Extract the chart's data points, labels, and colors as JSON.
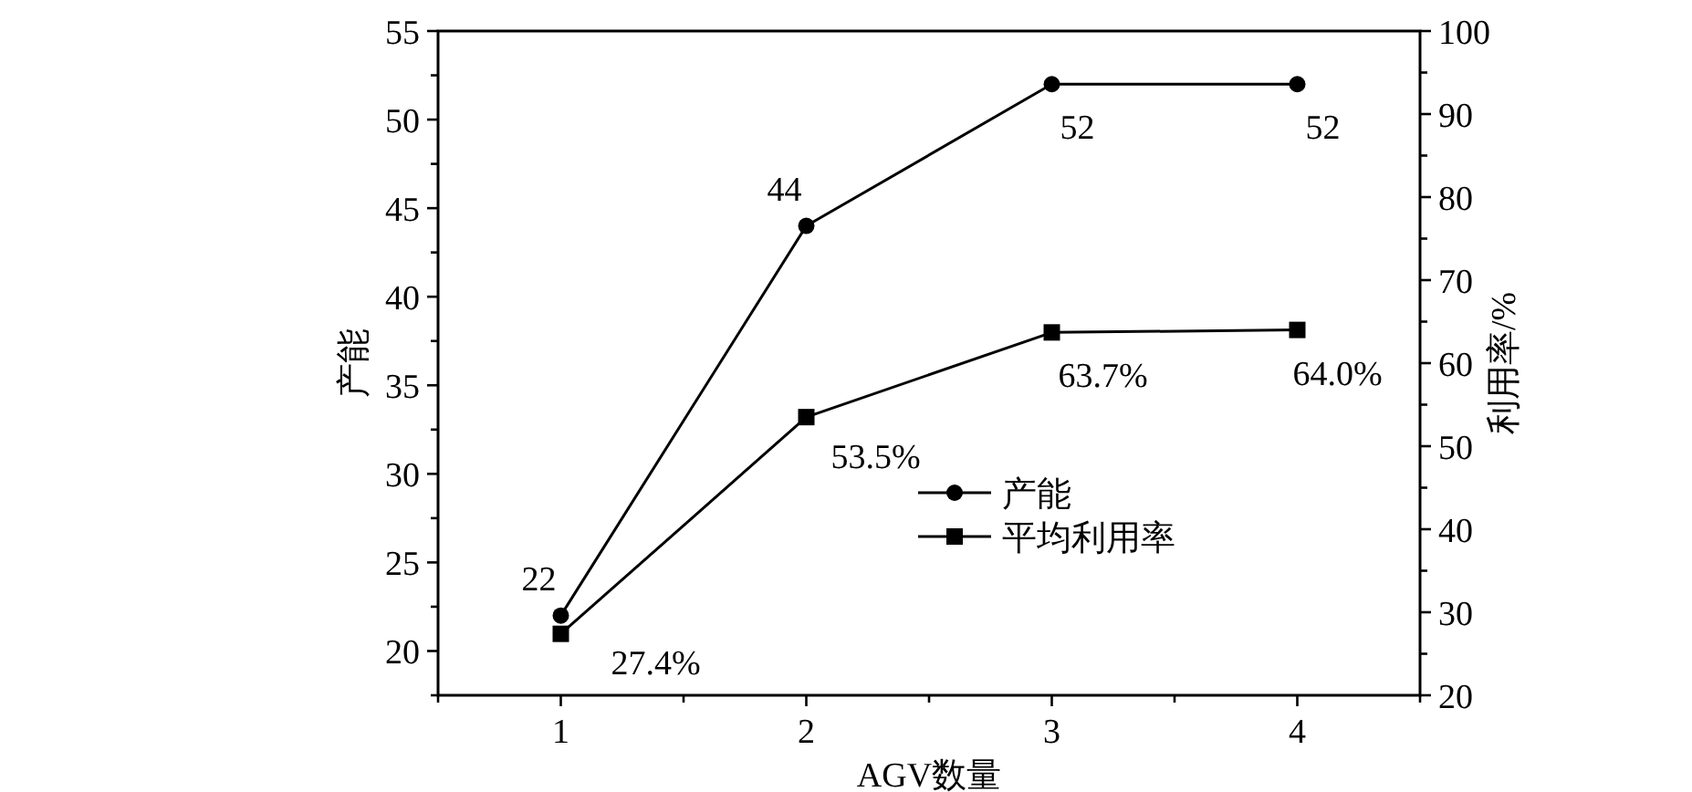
{
  "chart_data": {
    "type": "line",
    "xlabel": "AGV数量",
    "ylabel": "产能",
    "y2label": "利用率/%",
    "x": [
      1,
      2,
      3,
      4
    ],
    "xlim": [
      0.5,
      4.5
    ],
    "xticks": [
      {
        "value": 0.5,
        "label": null
      },
      1,
      {
        "value": 1.5,
        "label": null
      },
      2,
      {
        "value": 2.5,
        "label": null
      },
      3,
      {
        "value": 3.5,
        "label": null
      },
      4,
      {
        "value": 4.5,
        "label": null
      }
    ],
    "ylim": [
      17.5,
      55
    ],
    "yticks": [
      {
        "value": 17.5,
        "label": null
      },
      20,
      {
        "value": 22.5,
        "label": null
      },
      25,
      {
        "value": 27.5,
        "label": null
      },
      30,
      {
        "value": 32.5,
        "label": null
      },
      35,
      {
        "value": 37.5,
        "label": null
      },
      40,
      {
        "value": 42.5,
        "label": null
      },
      45,
      {
        "value": 47.5,
        "label": null
      },
      50,
      {
        "value": 52.5,
        "label": null
      },
      55
    ],
    "y2lim": [
      20,
      100
    ],
    "y2ticks": [
      20,
      {
        "value": 25,
        "label": null
      },
      30,
      {
        "value": 35,
        "label": null
      },
      40,
      {
        "value": 45,
        "label": null
      },
      50,
      {
        "value": 55,
        "label": null
      },
      60,
      {
        "value": 65,
        "label": null
      },
      70,
      {
        "value": 75,
        "label": null
      },
      80,
      {
        "value": 85,
        "label": null
      },
      90,
      {
        "value": 95,
        "label": null
      },
      100
    ],
    "series": [
      {
        "name": "产能",
        "color": "#000000",
        "marker": "circle",
        "values": [
          22,
          44,
          52,
          52
        ],
        "value_labels": [
          "22",
          "44",
          "52",
          "52"
        ]
      },
      {
        "name": "平均利用率",
        "color": "#000000",
        "marker": "square",
        "axis": "y2",
        "values": [
          27.4,
          53.5,
          63.7,
          64.0
        ],
        "value_labels": [
          "27.4%",
          "53.5%",
          "63.7%",
          "64.0%"
        ]
      }
    ],
    "legend": "bottom right",
    "grid": false,
    "line_style": "solid"
  }
}
